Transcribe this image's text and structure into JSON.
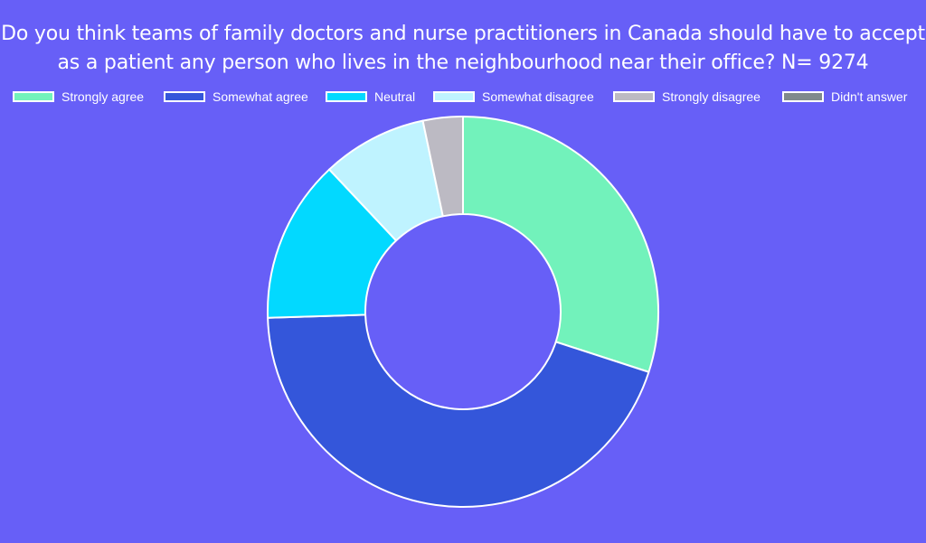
{
  "title_lines": [
    "Do you think teams of family doctors and nurse practitioners in Canada should have to accept",
    "as a patient any person who lives in the neighbourhood near their office? N= 9274"
  ],
  "colors": {
    "background": "#675ff7",
    "slice_border": "#ffffff"
  },
  "chart_data": {
    "type": "pie",
    "variant": "doughnut",
    "title": "Do you think teams of family doctors and nurse practitioners in Canada should have to accept as a patient any person who lives in the neighbourhood near their office? N= 9274",
    "legend_position": "top",
    "categories": [
      "Strongly agree",
      "Somewhat agree",
      "Neutral",
      "Somewhat disagree",
      "Strongly disagree",
      "Didn't answer"
    ],
    "values": [
      30.0,
      44.5,
      13.5,
      8.7,
      3.3,
      0
    ],
    "colors": [
      "#72f2bb",
      "#3456da",
      "#02d9ff",
      "#bff3ff",
      "#bcbac3",
      "#808a8c"
    ]
  }
}
